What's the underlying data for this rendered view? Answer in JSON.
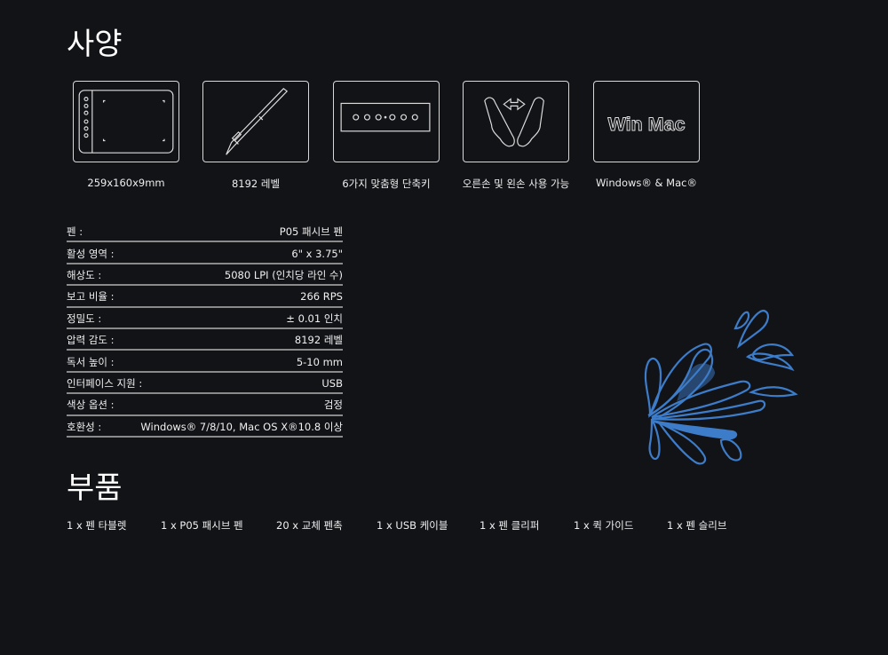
{
  "spec_title": "사양",
  "features": [
    {
      "icon": "tablet-icon",
      "label": "259x160x9mm"
    },
    {
      "icon": "pen-icon",
      "label": "8192 레벨"
    },
    {
      "icon": "express-keys-icon",
      "label": "6가지 맞춤형 단축키"
    },
    {
      "icon": "ambidextrous-hands-icon",
      "label": "오른손 및 왼손 사용 가능"
    },
    {
      "icon": "win-mac-icon",
      "label": "Windows® & Mac®",
      "icon_text": "Win  Mac"
    }
  ],
  "specs": [
    {
      "k": "펜 :",
      "v": "P05 패시브 펜"
    },
    {
      "k": "활성 영역 :",
      "v": "6\" x 3.75\""
    },
    {
      "k": "해상도 :",
      "v": "5080 LPI (인치당 라인 수)"
    },
    {
      "k": "보고 비율 :",
      "v": "266 RPS"
    },
    {
      "k": "정밀도 :",
      "v": "± 0.01 인치"
    },
    {
      "k": "압력 감도 :",
      "v": "8192 레벨"
    },
    {
      "k": "독서 높이 :",
      "v": "5-10 mm"
    },
    {
      "k": "인터페이스 지원 :",
      "v": "USB"
    },
    {
      "k": "색상 옵션 :",
      "v": "검정"
    },
    {
      "k": "호환성 :",
      "v": "Windows® 7/8/10, Mac OS X®10.8 이상"
    }
  ],
  "parts_title": "부품",
  "parts": [
    "1 x 펜 타블렛",
    "1 x P05 패시브 펜",
    "20 x 교체 펜촉",
    "1 x USB 케이블",
    "1 x 펜 클리퍼",
    "1 x 퀵 가이드",
    "1 x 펜 슬리브"
  ],
  "colors": {
    "background": "#121317",
    "illustration": "#3d7cc9"
  }
}
